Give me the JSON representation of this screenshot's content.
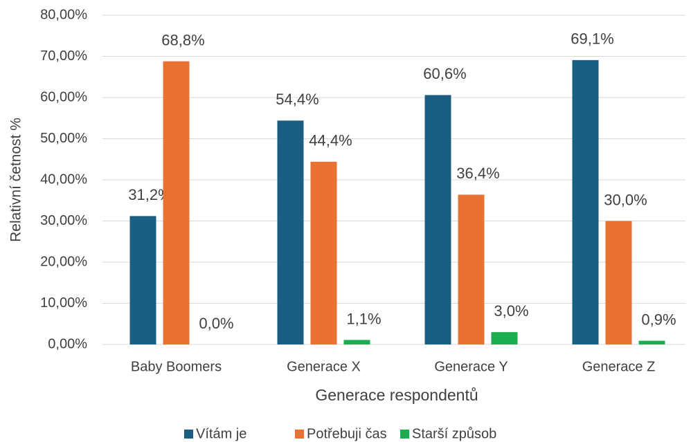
{
  "chart_data": {
    "type": "bar",
    "x_label": "Generace respondentů",
    "y_label": "Relativní četnost %",
    "categories": [
      "Baby Boomers",
      "Generace X",
      "Generace Y",
      "Generace Z"
    ],
    "series": [
      {
        "name": "Vítám je",
        "color": "#1a5f82",
        "values": [
          31.2,
          54.4,
          60.6,
          69.1
        ],
        "value_labels": [
          "31,2%",
          "54,4%",
          "60,6%",
          "69,1%"
        ]
      },
      {
        "name": "Potřebuji čas",
        "color": "#e97132",
        "values": [
          68.8,
          44.4,
          36.4,
          30.0
        ],
        "value_labels": [
          "68,8%",
          "44,4%",
          "36,4%",
          "30,0%"
        ]
      },
      {
        "name": "Starší způsob",
        "color": "#1bad4f",
        "values": [
          0.0,
          1.1,
          3.0,
          0.9
        ],
        "value_labels": [
          "0,0%",
          "1,1%",
          "3,0%",
          "0,9%"
        ]
      }
    ],
    "ylim": [
      0,
      80
    ],
    "yticks": [
      {
        "value": 0,
        "label": "0,00%"
      },
      {
        "value": 10,
        "label": "10,00%"
      },
      {
        "value": 20,
        "label": "20,00%"
      },
      {
        "value": 30,
        "label": "30,00%"
      },
      {
        "value": 40,
        "label": "40,00%"
      },
      {
        "value": 50,
        "label": "50,00%"
      },
      {
        "value": 60,
        "label": "60,00%"
      },
      {
        "value": 70,
        "label": "70,00%"
      },
      {
        "value": 80,
        "label": "80,00%"
      }
    ],
    "grid": true,
    "legend": "bottom"
  }
}
